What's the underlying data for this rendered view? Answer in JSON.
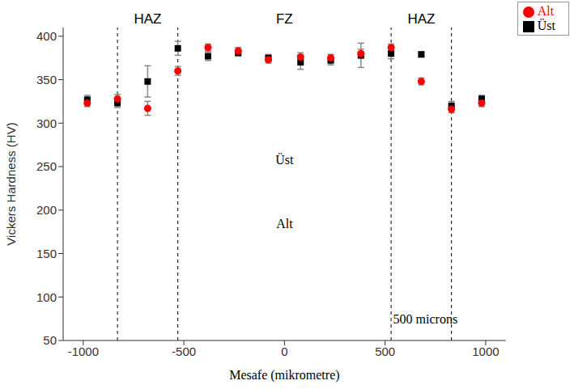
{
  "chart_data": {
    "type": "scatter",
    "x_label": "Mesafe (mikrometre)",
    "y_label": "Vickers Hardness (HV)",
    "x": [
      -980,
      -830,
      -680,
      -530,
      -380,
      -230,
      -80,
      80,
      230,
      380,
      530,
      680,
      830,
      980
    ],
    "series": [
      {
        "name": "Üst",
        "color": "#000000",
        "marker": "square",
        "values": [
          327,
          323,
          348,
          386,
          377,
          381,
          375,
          370,
          372,
          378,
          380,
          379,
          320,
          328
        ],
        "errors": [
          5,
          5,
          18,
          8,
          5,
          4,
          4,
          8,
          5,
          14,
          6,
          3,
          5,
          4
        ]
      },
      {
        "name": "Alt",
        "color": "#ff0000",
        "marker": "circle",
        "values": [
          323,
          328,
          317,
          360,
          387,
          383,
          373,
          376,
          375,
          380,
          387,
          348,
          316,
          323
        ],
        "errors": [
          4,
          5,
          8,
          5,
          4,
          4,
          4,
          5,
          4,
          5,
          4,
          4,
          4,
          4
        ]
      }
    ],
    "regions": [
      {
        "label": "HAZ",
        "from": -830,
        "to": -530
      },
      {
        "label": "FZ",
        "from": -530,
        "to": 530
      },
      {
        "label": "HAZ",
        "from": 530,
        "to": 830
      }
    ],
    "annotations": [
      {
        "text": "Üst",
        "x": 0,
        "y": 258
      },
      {
        "text": "Alt",
        "x": 0,
        "y": 185
      },
      {
        "text": "500 microns",
        "x": 700,
        "y": 75
      }
    ],
    "xlim": [
      -1100,
      1100
    ],
    "ylim": [
      50,
      410
    ],
    "xticks": [
      -1000,
      -500,
      0,
      500,
      1000
    ],
    "yticks": [
      50,
      100,
      150,
      200,
      250,
      300,
      350,
      400
    ],
    "legend": "upper right",
    "grid": false
  }
}
